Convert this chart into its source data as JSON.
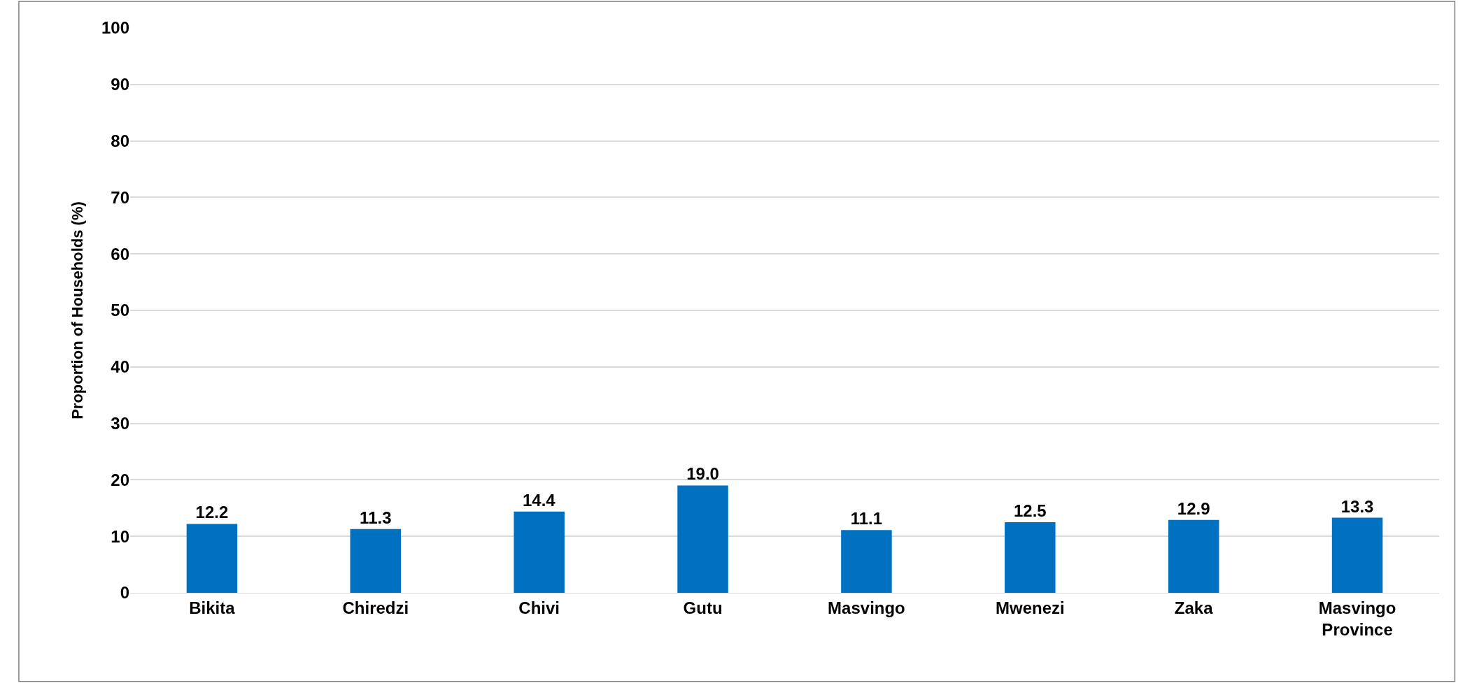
{
  "chart_data": {
    "type": "bar",
    "ylabel": "Proportion of Households (%)",
    "categories": [
      "Bikita",
      "Chiredzi",
      "Chivi",
      "Gutu",
      "Masvingo",
      "Mwenezi",
      "Zaka",
      "Masvingo Province"
    ],
    "values": [
      12.2,
      11.3,
      14.4,
      19.0,
      11.1,
      12.5,
      12.9,
      13.3
    ],
    "value_labels": [
      "12.2",
      "11.3",
      "14.4",
      "19.0",
      "11.1",
      "12.5",
      "12.9",
      "13.3"
    ],
    "color": "#0070c0",
    "ylim": [
      0,
      100
    ],
    "yticks": [
      0,
      10,
      20,
      30,
      40,
      50,
      60,
      70,
      80,
      90,
      100
    ],
    "grid": "y",
    "legend": false
  }
}
